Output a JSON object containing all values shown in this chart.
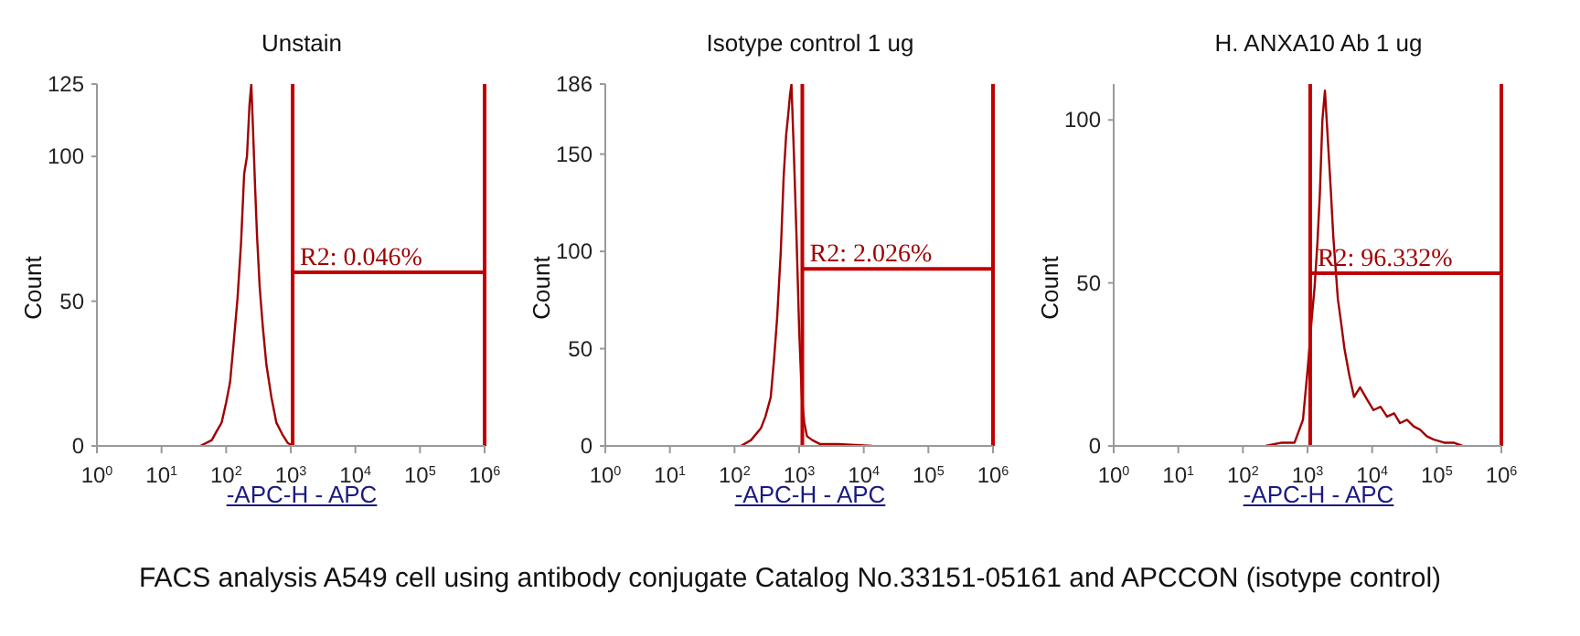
{
  "chart_data": [
    {
      "type": "line",
      "title": "Unstain",
      "xlabel": "-APC-H - APC",
      "ylabel": "Count",
      "log": "x",
      "color": "#a00000",
      "x": [
        40,
        60,
        71,
        85,
        100,
        115,
        130,
        150,
        170,
        190,
        210,
        230,
        245,
        260,
        280,
        300,
        330,
        370,
        420,
        500,
        600,
        740,
        900,
        1070
      ],
      "values": [
        0,
        2,
        5,
        8,
        15,
        22,
        35,
        51,
        70,
        94,
        100,
        118,
        125,
        110,
        90,
        73,
        55,
        41,
        28,
        17,
        8,
        4,
        1,
        0
      ],
      "xlim": [
        1,
        1000000
      ],
      "ylim": [
        0,
        125
      ],
      "xticks": [
        {
          "value": 1,
          "label": "10$^{0}$"
        },
        {
          "value": 10,
          "label": "10$^{1}$"
        },
        {
          "value": 100,
          "label": "10$^{2}$"
        },
        {
          "value": 1000,
          "label": "10$^{3}$"
        },
        {
          "value": 10000,
          "label": "10$^{4}$"
        },
        {
          "value": 100000,
          "label": "10$^{5}$"
        },
        {
          "value": 1000000,
          "label": "10$^{6}$"
        }
      ],
      "yticks": [
        0,
        50,
        100,
        125
      ],
      "ref_lines": [
        {
          "axis": "x",
          "value": 1070,
          "color": "#c00000"
        },
        {
          "axis": "x",
          "value": 1000000,
          "color": "#c00000"
        }
      ],
      "annotations": [
        {
          "text": "R2: 0.046%",
          "x": 1070,
          "y": 60
        },
        "FACS analysis A549 cell using antibody conjugate Catalog No.33151-05161 and APCCON (isotype control)"
      ]
    },
    {
      "type": "line",
      "title": "Isotype control 1 ug",
      "xlabel": "-APC-H - APC",
      "ylabel": "Count",
      "log": "x",
      "color": "#a00000",
      "x": [
        126,
        180,
        255,
        300,
        363,
        410,
        457,
        520,
        575,
        630,
        676,
        720,
        760,
        830,
        912,
        1000,
        1100,
        1200,
        1320,
        1600,
        2090,
        4000,
        13500
      ],
      "values": [
        0,
        3,
        9,
        15,
        25,
        45,
        66,
        100,
        138,
        160,
        170,
        180,
        186,
        150,
        107,
        60,
        25,
        12,
        5,
        3,
        1,
        1,
        0
      ],
      "xlim": [
        1,
        1000000
      ],
      "ylim": [
        0,
        186
      ],
      "xticks": [
        {
          "value": 1,
          "label": "10$^{0}$"
        },
        {
          "value": 10,
          "label": "10$^{1}$"
        },
        {
          "value": 100,
          "label": "10$^{2}$"
        },
        {
          "value": 1000,
          "label": "10$^{3}$"
        },
        {
          "value": 10000,
          "label": "10$^{4}$"
        },
        {
          "value": 100000,
          "label": "10$^{5}$"
        },
        {
          "value": 1000000,
          "label": "10$^{6}$"
        }
      ],
      "yticks": [
        0,
        50,
        100,
        150,
        186
      ],
      "ref_lines": [
        {
          "axis": "x",
          "value": 1120,
          "color": "#c00000"
        },
        {
          "axis": "x",
          "value": 1000000,
          "color": "#c00000"
        }
      ],
      "annotations": [
        {
          "text": "R2: 2.026%",
          "x": 1120,
          "y": 91
        }
      ]
    },
    {
      "type": "line",
      "title": "H. ANXA10 Ab 1 ug",
      "xlabel": "-APC-H - APC",
      "ylabel": "Count",
      "log": "x",
      "color": "#a00000",
      "x": [
        224,
        400,
        630,
        850,
        1020,
        1150,
        1290,
        1420,
        1550,
        1700,
        1860,
        2090,
        2300,
        2510,
        2950,
        3300,
        3720,
        4400,
        5250,
        6500,
        8500,
        10500,
        13500,
        17000,
        21900,
        27000,
        34700,
        44000,
        55000,
        70000,
        89000,
        130000,
        182000,
        250000
      ],
      "values": [
        0,
        1,
        1,
        8,
        25,
        38,
        49,
        62,
        77,
        100,
        109,
        92,
        78,
        64,
        45,
        38,
        30,
        22,
        15,
        18,
        14,
        11,
        12,
        9,
        10,
        7,
        8,
        6,
        5,
        3,
        2,
        1,
        1,
        0
      ],
      "xlim": [
        1,
        1000000
      ],
      "ylim": [
        0,
        111
      ],
      "xticks": [
        {
          "value": 1,
          "label": "10$^{0}$"
        },
        {
          "value": 10,
          "label": "10$^{1}$"
        },
        {
          "value": 100,
          "label": "10$^{2}$"
        },
        {
          "value": 1000,
          "label": "10$^{3}$"
        },
        {
          "value": 10000,
          "label": "10$^{4}$"
        },
        {
          "value": 100000,
          "label": "10$^{5}$"
        },
        {
          "value": 1000000,
          "label": "10$^{6}$"
        }
      ],
      "yticks": [
        0,
        50,
        100
      ],
      "ref_lines": [
        {
          "axis": "x",
          "value": 1100,
          "color": "#c00000"
        },
        {
          "axis": "x",
          "value": 1000000,
          "color": "#c00000"
        }
      ],
      "annotations": [
        {
          "text": "R2: 96.332%",
          "x": 1100,
          "y": 53
        }
      ]
    }
  ]
}
